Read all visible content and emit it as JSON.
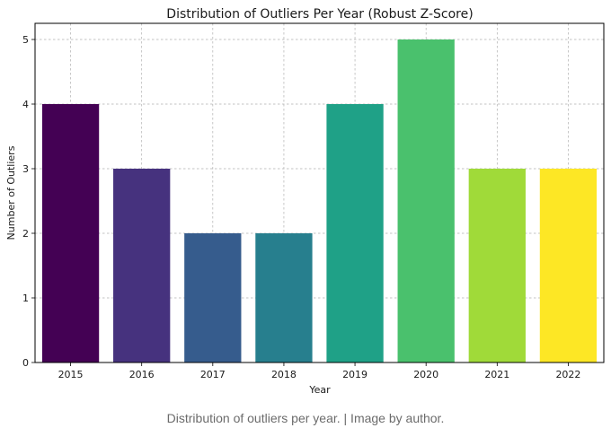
{
  "chart_data": {
    "type": "bar",
    "title": "Distribution of Outliers Per Year (Robust Z-Score)",
    "xlabel": "Year",
    "ylabel": "Number of Outliers",
    "categories": [
      "2015",
      "2016",
      "2017",
      "2018",
      "2019",
      "2020",
      "2021",
      "2022"
    ],
    "values": [
      4,
      3,
      2,
      2,
      4,
      5,
      3,
      3
    ],
    "colors": [
      "#440154",
      "#46327e",
      "#365c8d",
      "#277f8e",
      "#1fa187",
      "#4ac16d",
      "#a0da39",
      "#fde725"
    ],
    "ylim": [
      0,
      5.25
    ],
    "yticks": [
      0,
      1,
      2,
      3,
      4,
      5
    ],
    "grid": true,
    "legend": "none"
  },
  "caption": "Distribution of outliers per year. | Image by author."
}
